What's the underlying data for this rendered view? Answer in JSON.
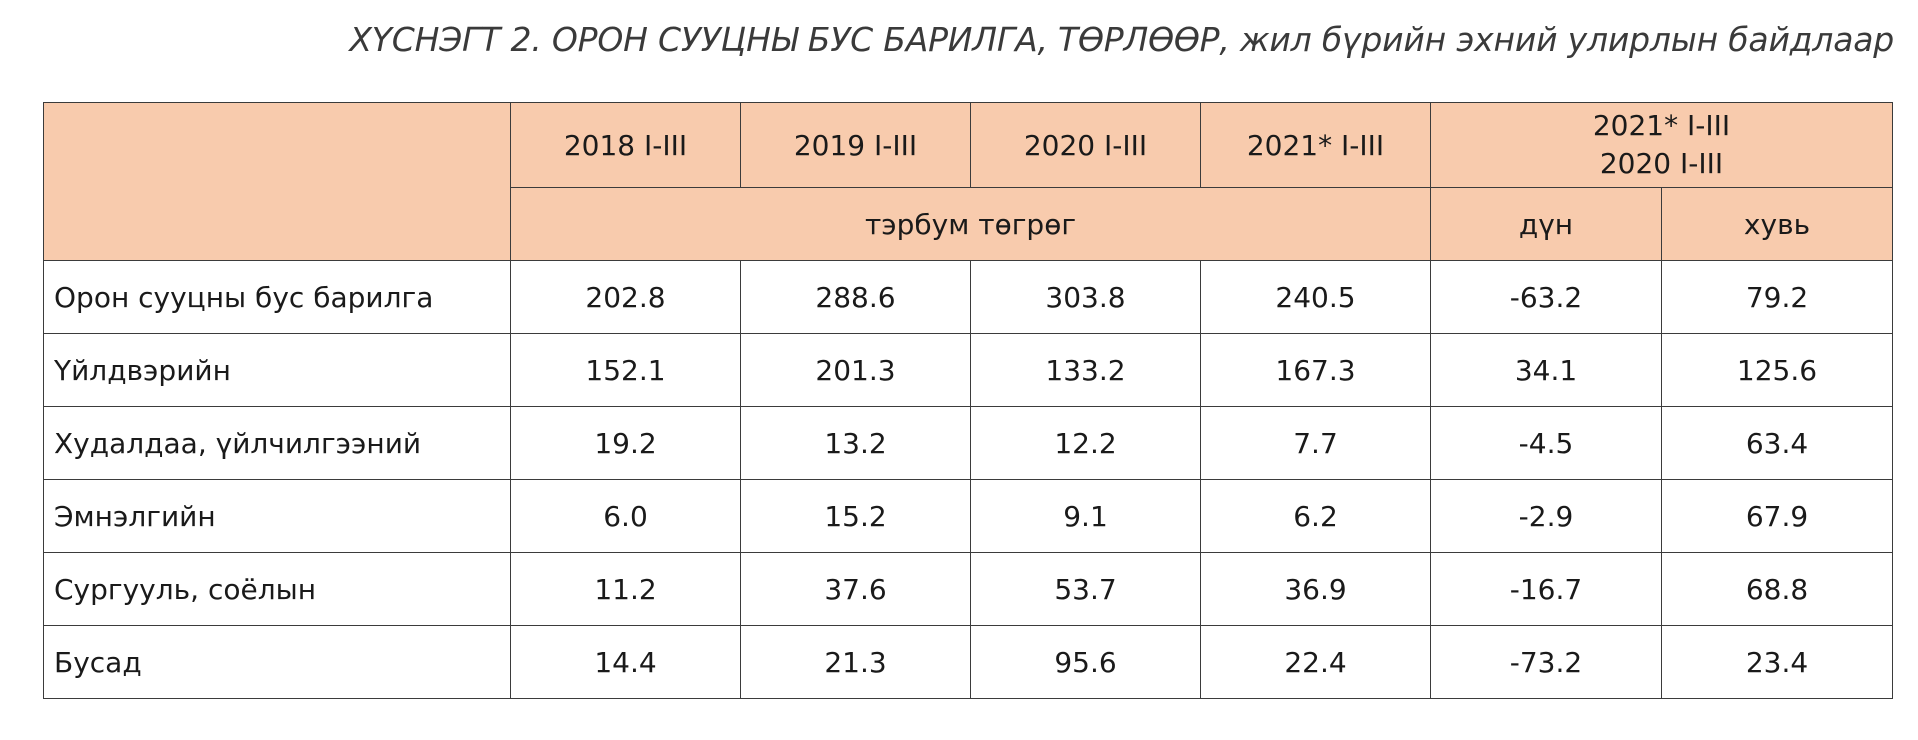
{
  "title": "ХҮСНЭГТ 2. ОРОН СУУЦНЫ БУС БАРИЛГА, ТӨРЛӨӨР, жил бүрийн эхний улирлын байдлаар",
  "table": {
    "period_headers": [
      "2018 I-III",
      "2019 I-III",
      "2020 I-III",
      "2021* I-III"
    ],
    "comparison_header": {
      "line1": "2021* I-III",
      "line2": "2020 I-III"
    },
    "unit_label": "тэрбум төгрөг",
    "change_label": "дүн",
    "percent_label": "хувь",
    "rows": [
      {
        "label": "Орон сууцны бус барилга",
        "values": [
          "202.8",
          "288.6",
          "303.8",
          "240.5",
          "-63.2",
          "79.2"
        ]
      },
      {
        "label": "Үйлдвэрийн",
        "values": [
          "152.1",
          "201.3",
          "133.2",
          "167.3",
          "34.1",
          "125.6"
        ]
      },
      {
        "label": "Худалдаа, үйлчилгээний",
        "values": [
          "19.2",
          "13.2",
          "12.2",
          "7.7",
          "-4.5",
          "63.4"
        ]
      },
      {
        "label": "Эмнэлгийн",
        "values": [
          "6.0",
          "15.2",
          "9.1",
          "6.2",
          "-2.9",
          "67.9"
        ]
      },
      {
        "label": "Сургууль, соёлын",
        "values": [
          "11.2",
          "37.6",
          "53.7",
          "36.9",
          "-16.7",
          "68.8"
        ]
      },
      {
        "label": "Бусад",
        "values": [
          "14.4",
          "21.3",
          "95.6",
          "22.4",
          "-73.2",
          "23.4"
        ]
      }
    ]
  },
  "colors": {
    "header_fill": "#f8cbad",
    "border": "#3b3b3b",
    "title_text": "#3a3a3a"
  }
}
